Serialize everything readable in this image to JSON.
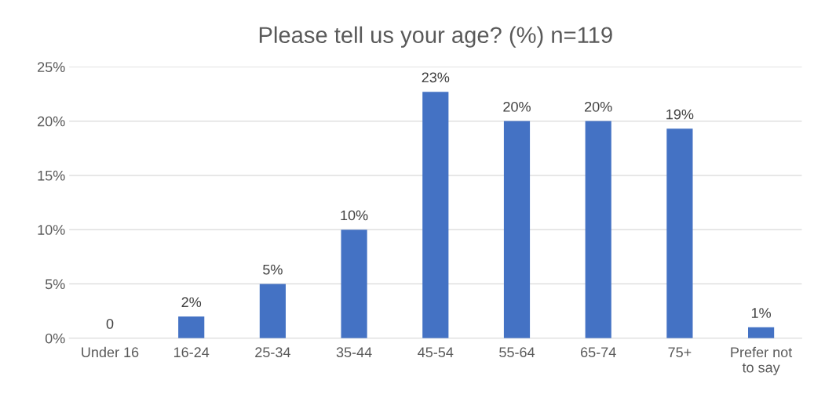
{
  "chart_data": {
    "type": "bar",
    "title": "Please tell us your age? (%) n=119",
    "categories": [
      "Under 16",
      "16-24",
      "25-34",
      "35-44",
      "45-54",
      "55-64",
      "65-74",
      "75+",
      "Prefer not\nto say"
    ],
    "values": [
      0,
      2,
      5,
      10,
      22.7,
      20,
      20,
      19.3,
      1
    ],
    "value_labels": [
      "0",
      "2%",
      "5%",
      "10%",
      "23%",
      "20%",
      "20%",
      "19%",
      "1%"
    ],
    "color": "#4472c4",
    "ylim": [
      0,
      25
    ],
    "yticks": [
      {
        "value": 0,
        "label": "0%"
      },
      {
        "value": 5,
        "label": "5%"
      },
      {
        "value": 10,
        "label": "10%"
      },
      {
        "value": 15,
        "label": "15%"
      },
      {
        "value": 20,
        "label": "20%"
      },
      {
        "value": 25,
        "label": "25%"
      }
    ],
    "grid": "y",
    "legend": false
  }
}
